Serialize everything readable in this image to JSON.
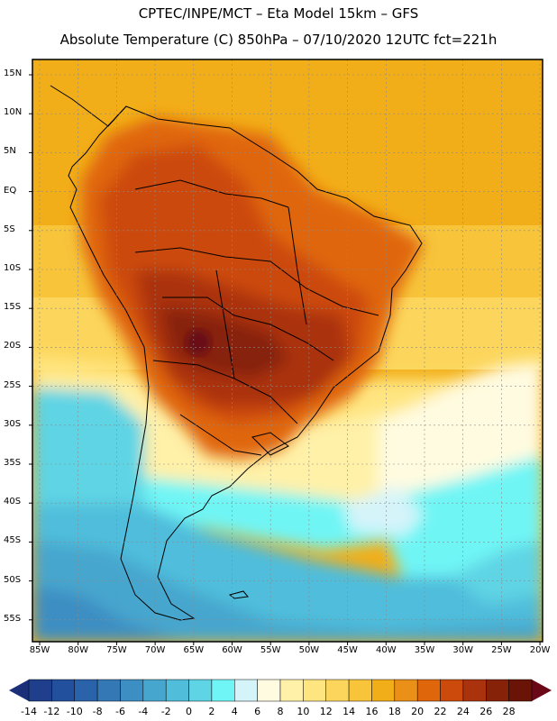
{
  "header": {
    "line1": "CPTEC/INPE/MCT –  Eta Model 15km – GFS",
    "line2": "Absolute Temperature (C) 850hPa – 07/10/2020 12UTC fct=221h"
  },
  "axes": {
    "lat_labels": [
      "15N",
      "10N",
      "5N",
      "EQ",
      "5S",
      "10S",
      "15S",
      "20S",
      "25S",
      "30S",
      "35S",
      "40S",
      "45S",
      "50S",
      "55S"
    ],
    "lon_labels": [
      "85W",
      "80W",
      "75W",
      "70W",
      "65W",
      "60W",
      "55W",
      "50W",
      "45W",
      "40W",
      "35W",
      "30W",
      "25W",
      "20W"
    ]
  },
  "colorbar": {
    "labels": [
      "-14",
      "-12",
      "-10",
      "-8",
      "-6",
      "-4",
      "-2",
      "0",
      "2",
      "4",
      "6",
      "8",
      "10",
      "12",
      "14",
      "16",
      "18",
      "20",
      "22",
      "24",
      "26",
      "28"
    ],
    "colors": [
      "#1f3f8c",
      "#23509c",
      "#2b63aa",
      "#3478b6",
      "#3d8ec2",
      "#47a6ce",
      "#50bddb",
      "#5fd4e4",
      "#6ff5f5",
      "#d4f4fa",
      "#fffbe0",
      "#fff1a8",
      "#ffe580",
      "#fcd65c",
      "#f7c43a",
      "#f2ae18",
      "#ea9018",
      "#e0660c",
      "#cc4a0c",
      "#aa320c",
      "#862208",
      "#6a1408"
    ],
    "end_colors": {
      "low": "#1a2f78",
      "high": "#6a0818"
    }
  }
}
